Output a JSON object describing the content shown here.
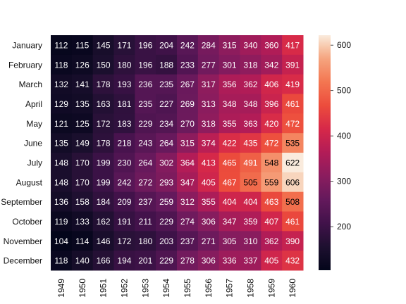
{
  "chart_data": {
    "type": "heatmap",
    "title": "",
    "xlabel": "",
    "ylabel": "",
    "x_categories": [
      "1949",
      "1950",
      "1951",
      "1952",
      "1953",
      "1954",
      "1955",
      "1956",
      "1957",
      "1958",
      "1959",
      "1960"
    ],
    "y_categories": [
      "January",
      "February",
      "March",
      "April",
      "May",
      "June",
      "July",
      "August",
      "September",
      "October",
      "November",
      "December"
    ],
    "values": [
      [
        112,
        115,
        145,
        171,
        196,
        204,
        242,
        284,
        315,
        340,
        360,
        417
      ],
      [
        118,
        126,
        150,
        180,
        196,
        188,
        233,
        277,
        301,
        318,
        342,
        391
      ],
      [
        132,
        141,
        178,
        193,
        236,
        235,
        267,
        317,
        356,
        362,
        406,
        419
      ],
      [
        129,
        135,
        163,
        181,
        235,
        227,
        269,
        313,
        348,
        348,
        396,
        461
      ],
      [
        121,
        125,
        172,
        183,
        229,
        234,
        270,
        318,
        355,
        363,
        420,
        472
      ],
      [
        135,
        149,
        178,
        218,
        243,
        264,
        315,
        374,
        422,
        435,
        472,
        535
      ],
      [
        148,
        170,
        199,
        230,
        264,
        302,
        364,
        413,
        465,
        491,
        548,
        622
      ],
      [
        148,
        170,
        199,
        242,
        272,
        293,
        347,
        405,
        467,
        505,
        559,
        606
      ],
      [
        136,
        158,
        184,
        209,
        237,
        259,
        312,
        355,
        404,
        404,
        463,
        508
      ],
      [
        119,
        133,
        162,
        191,
        211,
        229,
        274,
        306,
        347,
        359,
        407,
        461
      ],
      [
        104,
        114,
        146,
        172,
        180,
        203,
        237,
        271,
        305,
        310,
        362,
        390
      ],
      [
        118,
        140,
        166,
        194,
        201,
        229,
        278,
        306,
        336,
        337,
        405,
        432
      ]
    ],
    "annotated": true,
    "colormap": "rocket",
    "colorbar": {
      "range": [
        104,
        622
      ],
      "ticks": [
        200,
        300,
        400,
        500,
        600
      ]
    }
  }
}
